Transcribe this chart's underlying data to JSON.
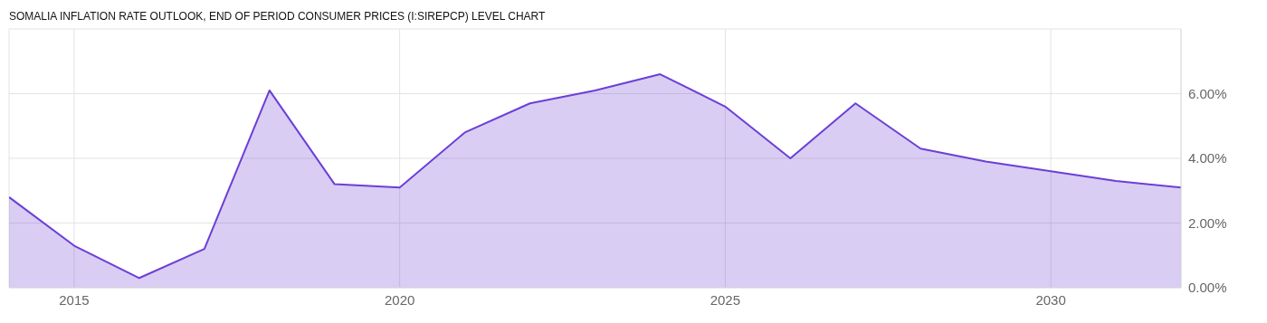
{
  "chart_data": {
    "type": "area",
    "title": "SOMALIA INFLATION RATE OUTLOOK, END OF PERIOD CONSUMER PRICES (I:SIREPCP) LEVEL CHART",
    "x": [
      2014,
      2015,
      2016,
      2017,
      2018,
      2019,
      2020,
      2021,
      2022,
      2023,
      2024,
      2025,
      2026,
      2027,
      2028,
      2029,
      2030,
      2031,
      2032
    ],
    "series": [
      {
        "color": "#6b3fd6",
        "values": [
          2.8,
          1.3,
          0.3,
          1.2,
          6.1,
          3.2,
          3.1,
          4.8,
          5.7,
          6.1,
          6.6,
          5.6,
          4.0,
          5.7,
          4.3,
          3.9,
          3.6,
          3.3,
          3.1
        ]
      }
    ],
    "xlim": [
      2014,
      2032
    ],
    "xticks": [
      2015,
      2020,
      2025,
      2030
    ],
    "ylim": [
      0,
      8
    ],
    "yticks": [
      {
        "value": 0,
        "label": "0.00%"
      },
      {
        "value": 2,
        "label": "2.00%"
      },
      {
        "value": 4,
        "label": "4.00%"
      },
      {
        "value": 6,
        "label": "6.00%"
      }
    ],
    "grid": true,
    "legend": false,
    "marker": "none",
    "line_style": "solid"
  }
}
